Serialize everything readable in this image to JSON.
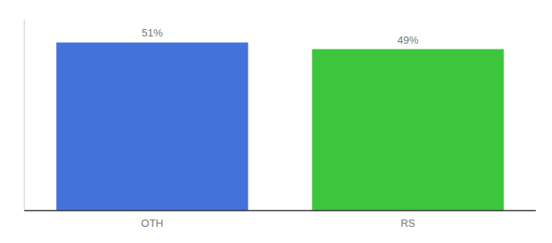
{
  "chart_data": {
    "type": "bar",
    "categories": [
      "OTH",
      "RS"
    ],
    "values": [
      51,
      49
    ],
    "value_labels": [
      "51%",
      "49%"
    ],
    "colors": [
      "#4472db",
      "#3dc63d"
    ],
    "ylim": [
      0,
      58
    ],
    "yticks": [],
    "data_labels": true,
    "tick_labels": "x"
  }
}
